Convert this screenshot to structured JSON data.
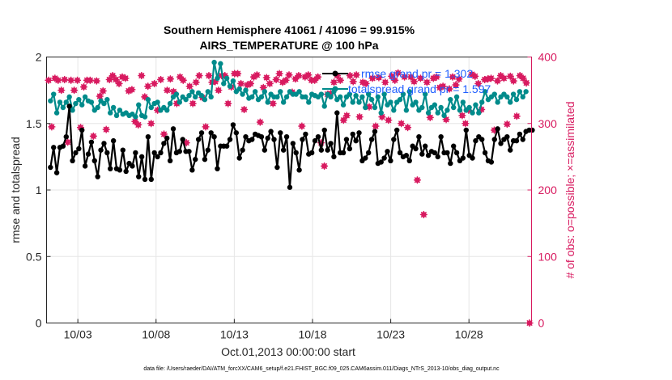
{
  "chart_data": {
    "type": "line",
    "title": "Southern Hemisphere 41061 / 41096 = 99.915%",
    "subtitle": "AIRS_TEMPERATURE @ 100 hPa",
    "xlabel": "Oct.01,2013 00:00:00 start",
    "ylabel": "rmse and totalspread",
    "ylabel_right": "# of obs: o=possible; ×=assimilated",
    "footer": "data file: /Users/raeder/DAI/ATM_forcXX/CAM6_setup/f.e21.FHIST_BGC.f09_025.CAM6assim.011/Diags_NTrS_2013-10/obs_diag_output.nc",
    "x_ticks": [
      "10/03",
      "10/08",
      "10/13",
      "10/18",
      "10/23",
      "10/28"
    ],
    "x_tick_days": [
      2,
      7,
      12,
      17,
      22,
      27
    ],
    "xlim_days": [
      0,
      31
    ],
    "ylim": [
      0,
      2
    ],
    "y_ticks": [
      "0",
      "0.5",
      "1",
      "1.5",
      "2"
    ],
    "y2lim": [
      0,
      400
    ],
    "y2_ticks": [
      "0",
      "100",
      "200",
      "300",
      "400"
    ],
    "grid": true,
    "colors": {
      "rmse": "#000000",
      "spread": "#008b8b",
      "obs": "#d81b60",
      "legend_text": "#1f5fff"
    },
    "series": [
      {
        "name": "rmse grand pr = 1.302",
        "axis": "left",
        "values": [
          1.17,
          1.32,
          1.13,
          1.32,
          1.33,
          1.4,
          1.63,
          1.22,
          1.28,
          1.31,
          1.45,
          1.18,
          1.27,
          1.36,
          1.22,
          1.1,
          1.3,
          1.35,
          1.28,
          1.16,
          1.37,
          1.16,
          1.15,
          1.3,
          1.14,
          1.2,
          1.18,
          1.28,
          1.1,
          1.25,
          1.08,
          1.4,
          1.08,
          1.28,
          1.25,
          1.28,
          1.35,
          1.39,
          1.22,
          1.46,
          1.28,
          1.29,
          1.38,
          1.29,
          1.29,
          1.15,
          1.23,
          1.38,
          1.43,
          1.23,
          1.3,
          1.43,
          1.4,
          1.16,
          1.33,
          1.33,
          1.33,
          1.38,
          1.49,
          1.43,
          1.24,
          1.3,
          1.4,
          1.37,
          1.38,
          1.42,
          1.41,
          1.4,
          1.3,
          1.39,
          1.44,
          1.38,
          1.17,
          1.43,
          1.3,
          1.4,
          1.02,
          1.35,
          1.28,
          1.15,
          1.38,
          1.42,
          1.27,
          1.28,
          1.37,
          1.4,
          1.3,
          1.45,
          1.3,
          1.35,
          1.25,
          1.58,
          1.28,
          1.28,
          1.38,
          1.31,
          1.42,
          1.37,
          1.43,
          1.22,
          1.24,
          1.28,
          1.38,
          1.44,
          1.2,
          1.21,
          1.24,
          1.29,
          1.22,
          1.38,
          1.45,
          1.28,
          1.25,
          1.26,
          1.22,
          1.33,
          1.31,
          1.4,
          1.27,
          1.33,
          1.26,
          1.29,
          1.28,
          1.25,
          1.4,
          1.28,
          1.28,
          1.2,
          1.33,
          1.28,
          1.22,
          1.24,
          1.45,
          1.26,
          1.24,
          1.37,
          1.4,
          1.38,
          1.28,
          1.22,
          1.21,
          1.38,
          1.46,
          1.35,
          1.38,
          1.4,
          1.3,
          1.37,
          1.37,
          1.42,
          1.38,
          1.44,
          1.45,
          1.45
        ]
      },
      {
        "name": "totalspread grand pr = 1.597",
        "axis": "left",
        "values": [
          1.67,
          1.72,
          1.58,
          1.66,
          1.62,
          1.66,
          1.7,
          1.6,
          1.65,
          1.68,
          1.64,
          1.7,
          1.67,
          1.66,
          1.6,
          1.62,
          1.67,
          1.65,
          1.68,
          1.58,
          1.62,
          1.56,
          1.6,
          1.57,
          1.58,
          1.56,
          1.57,
          1.55,
          1.64,
          1.56,
          1.55,
          1.68,
          1.62,
          1.65,
          1.66,
          1.6,
          1.62,
          1.6,
          1.65,
          1.7,
          1.72,
          1.66,
          1.7,
          1.68,
          1.71,
          1.74,
          1.7,
          1.73,
          1.71,
          1.68,
          1.74,
          1.7,
          1.96,
          1.84,
          1.95,
          1.8,
          1.84,
          1.78,
          1.82,
          1.74,
          1.76,
          1.72,
          1.75,
          1.69,
          1.7,
          1.74,
          1.68,
          1.7,
          1.74,
          1.66,
          1.72,
          1.7,
          1.7,
          1.74,
          1.66,
          1.7,
          1.74,
          1.72,
          1.72,
          1.74,
          1.7,
          1.7,
          1.66,
          1.72,
          1.71,
          1.7,
          1.72,
          1.63,
          1.72,
          1.7,
          1.74,
          1.68,
          1.7,
          1.64,
          1.7,
          1.72,
          1.66,
          1.71,
          1.66,
          1.7,
          1.62,
          1.72,
          1.68,
          1.62,
          1.7,
          1.58,
          1.72,
          1.64,
          1.66,
          1.6,
          1.66,
          1.68,
          1.72,
          1.6,
          1.74,
          1.64,
          1.66,
          1.6,
          1.62,
          1.72,
          1.58,
          1.62,
          1.64,
          1.58,
          1.62,
          1.56,
          1.6,
          1.68,
          1.62,
          1.7,
          1.6,
          1.66,
          1.6,
          1.62,
          1.58,
          1.64,
          1.58,
          1.66,
          1.74,
          1.68,
          1.7,
          1.72,
          1.66,
          1.7,
          1.72,
          1.7,
          1.66,
          1.72,
          1.68,
          1.74,
          1.7,
          1.74
        ]
      },
      {
        "name": "obs possible/assimilated",
        "axis": "right",
        "type": "scatter",
        "values": [
          365,
          295,
          368,
          365,
          350,
          366,
          272,
          365,
          350,
          365,
          294,
          355,
          365,
          365,
          281,
          364,
          341,
          349,
          291,
          366,
          372,
          366,
          360,
          370,
          368,
          349,
          351,
          303,
          298,
          372,
          340,
          356,
          300,
          360,
          320,
          366,
          284,
          350,
          367,
          348,
          330,
          370,
          365,
          271,
          356,
          330,
          362,
          372,
          339,
          295,
          372,
          362,
          363,
          350,
          372,
          372,
          330,
          355,
          375,
          375,
          360,
          321,
          358,
          360,
          370,
          373,
          302,
          354,
          369,
          360,
          330,
          366,
          375,
          362,
          365,
          373,
          347,
          367,
          372,
          296,
          370,
          373,
          365,
          365,
          370,
          271,
          236,
          344,
          345,
          362,
          372,
          365,
          305,
          312,
          372,
          363,
          373,
          310,
          362,
          360,
          325,
          368,
          296,
          369,
          310,
          362,
          305,
          371,
          365,
          376,
          300,
          370,
          294,
          370,
          363,
          215,
          368,
          163,
          362,
          309,
          368,
          370,
          354,
          356,
          306,
          352,
          370,
          358,
          367,
          312,
          300,
          320,
          374,
          371,
          360,
          321,
          366,
          367,
          368,
          290,
          364,
          372,
          368,
          299,
          371,
          364,
          311,
          372,
          368,
          361,
          0
        ]
      }
    ]
  }
}
